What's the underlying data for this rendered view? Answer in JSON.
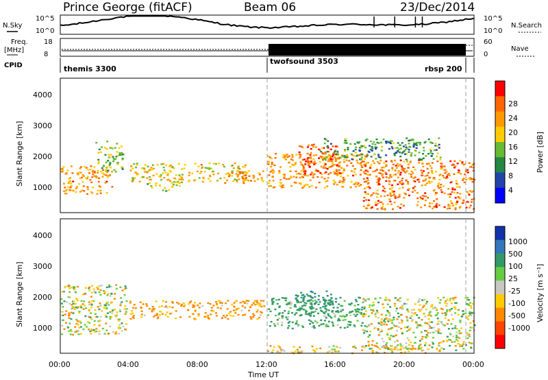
{
  "header": {
    "station": "Prince George (fitACF)",
    "beam": "Beam 06",
    "date": "23/Dec/2014"
  },
  "noise_panel": {
    "left_label": "N.Sky",
    "right_label": "N.Search",
    "ticks_left": [
      "10^5",
      "10^0"
    ],
    "ticks_right": [
      "10^5",
      "10^0"
    ]
  },
  "freq_panel": {
    "left_label_1": "Freq.",
    "left_label_2": "[MHz]",
    "right_label": "Nave",
    "ticks_left": [
      "18",
      "8"
    ],
    "ticks_right": [
      "60",
      "0"
    ]
  },
  "cpid": {
    "label": "CPID",
    "modes": [
      "themis 3300",
      "twofsound 3503",
      "rbsp 200"
    ]
  },
  "x_axis": {
    "label": "Time UT",
    "ticks": [
      "00:00",
      "04:00",
      "08:00",
      "12:00",
      "16:00",
      "20:00",
      "00:00"
    ]
  },
  "power_panel": {
    "ylabel": "Slant Range [km]",
    "yticks": [
      "4000",
      "3000",
      "2000",
      "1000"
    ],
    "colorbar_label": "Power [dB]",
    "colorbar_ticks": [
      "28",
      "24",
      "20",
      "16",
      "12",
      "8",
      "4"
    ],
    "colorbar_colors": [
      "#ff0000",
      "#ff6600",
      "#ff9900",
      "#ffcc00",
      "#66bb33",
      "#228844",
      "#2244aa",
      "#0000ff"
    ]
  },
  "velocity_panel": {
    "ylabel": "Slant Range [km]",
    "yticks": [
      "4000",
      "3000",
      "2000",
      "1000"
    ],
    "colorbar_label": "Velocity [m s⁻¹]",
    "colorbar_ticks": [
      "1000",
      "500",
      "100",
      "25",
      "-25",
      "-100",
      "-500",
      "-1000"
    ],
    "colorbar_colors": [
      "#1133aa",
      "#3377bb",
      "#339966",
      "#66cc44",
      "#c8c8c0",
      "#ffcc00",
      "#ff8800",
      "#ff4400",
      "#ff0000"
    ]
  },
  "chart_data": [
    {
      "type": "heatmap",
      "title": "Prince George (fitACF) Beam 06 23/Dec/2014",
      "xlabel": "Time UT",
      "ylabel": "Slant Range [km]",
      "xlim": [
        "00:00",
        "24:00"
      ],
      "ylim": [
        180,
        4500
      ],
      "colorbar": "Power [dB]",
      "colorbar_range": [
        0,
        30
      ],
      "cpid_segments": [
        {
          "name": "themis 3300",
          "start": "00:00",
          "end": "12:00"
        },
        {
          "name": "twofsound 3503",
          "start": "12:00",
          "end": "23:40"
        },
        {
          "name": "rbsp 200",
          "start": "23:40",
          "end": "24:00"
        }
      ],
      "echo_regions": [
        {
          "t0": 0.0,
          "t1": 3.0,
          "r0": 800,
          "r1": 1700,
          "level": 22
        },
        {
          "t0": 2.0,
          "t1": 3.6,
          "r0": 1500,
          "r1": 2500,
          "level": 12
        },
        {
          "t0": 4.0,
          "t1": 10.8,
          "r0": 1200,
          "r1": 1800,
          "level": 18
        },
        {
          "t0": 5.0,
          "t1": 7.0,
          "r0": 900,
          "r1": 1200,
          "level": 14
        },
        {
          "t0": 9.5,
          "t1": 11.8,
          "r0": 1150,
          "r1": 1550,
          "level": 22
        },
        {
          "t0": 12.0,
          "t1": 17.8,
          "r0": 1000,
          "r1": 2100,
          "level": 22
        },
        {
          "t0": 13.8,
          "t1": 16.2,
          "r0": 1400,
          "r1": 2400,
          "level": 26
        },
        {
          "t0": 17.5,
          "t1": 24.0,
          "r0": 300,
          "r1": 1900,
          "level": 24
        },
        {
          "t0": 15.0,
          "t1": 22.0,
          "r0": 1900,
          "r1": 2600,
          "level": 10
        }
      ]
    },
    {
      "type": "heatmap",
      "title": "Prince George (fitACF) Beam 06 23/Dec/2014",
      "xlabel": "Time UT",
      "ylabel": "Slant Range [km]",
      "xlim": [
        "00:00",
        "24:00"
      ],
      "ylim": [
        180,
        4500
      ],
      "colorbar": "Velocity [m s-1]",
      "colorbar_range": [
        -1000,
        1000
      ],
      "echo_regions": [
        {
          "t0": 0.0,
          "t1": 3.8,
          "r0": 800,
          "r1": 2400,
          "velocity": 0
        },
        {
          "t0": 4.0,
          "t1": 11.8,
          "r0": 1300,
          "r1": 1900,
          "velocity": -150
        },
        {
          "t0": 12.0,
          "t1": 17.5,
          "r0": 1000,
          "r1": 2000,
          "velocity": 150
        },
        {
          "t0": 13.5,
          "t1": 16.0,
          "r0": 1400,
          "r1": 2200,
          "velocity": 400
        },
        {
          "t0": 17.5,
          "t1": 24.0,
          "r0": 300,
          "r1": 2000,
          "velocity": 0
        },
        {
          "t0": 12.0,
          "t1": 22.0,
          "r0": 200,
          "r1": 450,
          "velocity": -80
        }
      ]
    }
  ]
}
